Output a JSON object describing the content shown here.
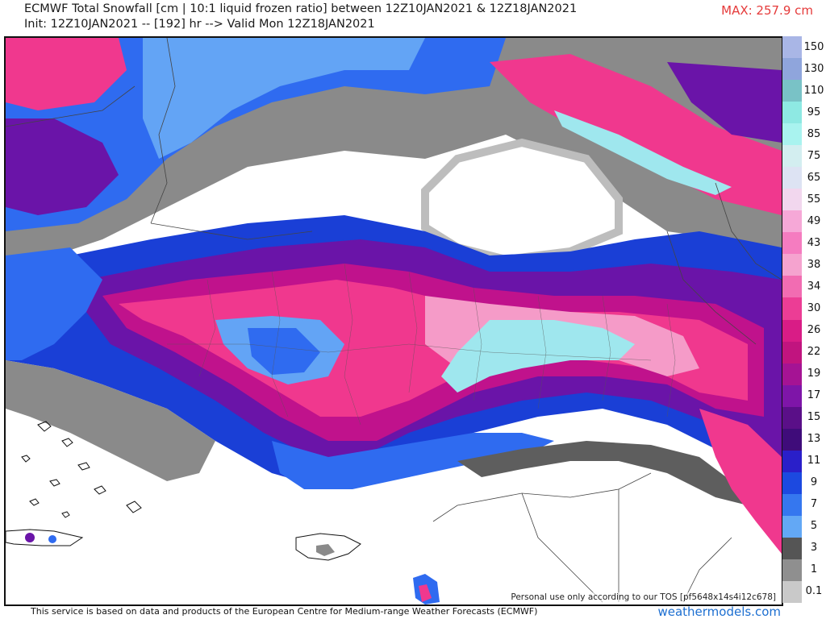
{
  "header": {
    "title_line1": "ECMWF Total Snowfall [cm | 10:1 liquid frozen ratio] between 12Z10JAN2021 & 12Z18JAN2021",
    "title_line2": "Init: 12Z10JAN2021 -- [192] hr --> Valid Mon 12Z18JAN2021",
    "max_label": "MAX: 257.9 cm"
  },
  "map": {
    "disclaimer": "Personal use only according to our TOS [pf5648x14s4i12c678]",
    "colors": {
      "white": "#ffffff",
      "gray_light": "#bdbdbd",
      "gray_mid": "#8a8a8a",
      "gray_dark": "#5e5e5e",
      "blue_deep": "#1a3fd6",
      "blue_mid": "#2f6bf0",
      "blue_light": "#63a4f5",
      "cyan": "#9fe7ee",
      "purple": "#6a14a8",
      "magenta": "#c0128c",
      "pink": "#f0388e",
      "pink_light": "#f59bc8"
    }
  },
  "colorbar": {
    "labels": [
      "150",
      "130",
      "110",
      "95",
      "85",
      "75",
      "65",
      "55",
      "49",
      "43",
      "38",
      "34",
      "30",
      "26",
      "22",
      "19",
      "17",
      "15",
      "13",
      "11",
      "9",
      "7",
      "5",
      "3",
      "1",
      "0.1"
    ],
    "colors": [
      "#a9b6e6",
      "#8fa5dc",
      "#79c2c6",
      "#8ee9e3",
      "#a9f3ef",
      "#d3eef0",
      "#dde3f3",
      "#f2d7ee",
      "#f6a8d7",
      "#f57cc0",
      "#f5a3cf",
      "#f26cb2",
      "#ec3d95",
      "#d91c86",
      "#c1147f",
      "#a51394",
      "#7e15a8",
      "#5a0f88",
      "#3f0c7a",
      "#2a1fc9",
      "#1c49e0",
      "#3577ef",
      "#63a8f5",
      "#555555",
      "#8f8f8f",
      "#c9c9c9"
    ]
  },
  "footer": {
    "credit": "This service is based on data and products of the European Centre for Medium-range Weather Forecasts (ECMWF)",
    "brand": "weathermodels.com"
  }
}
